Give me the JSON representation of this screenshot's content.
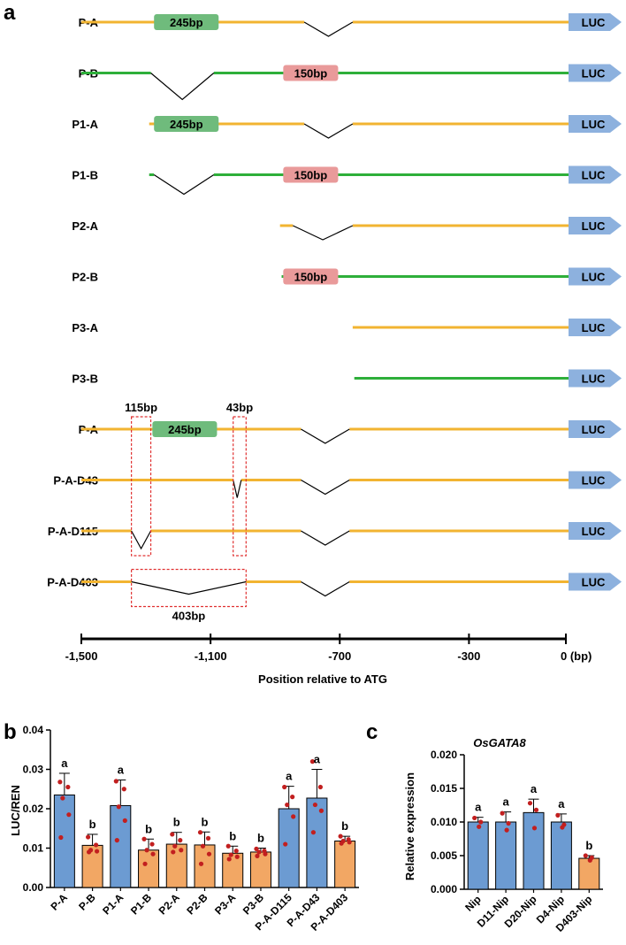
{
  "panel_labels": {
    "a": "a",
    "b": "b",
    "c": "c"
  },
  "colors": {
    "yellow": "#F2B431",
    "green": "#2EAF3A",
    "green_box": "#6FBB7C",
    "red_box": "#E99A9A",
    "luc": "#8DB1DE",
    "bar_blue": "#6C9BD2",
    "bar_orange": "#F2A764",
    "dot": "#C21F1F",
    "dashed": "#E03030"
  },
  "chart_data": [
    {
      "id": "a",
      "type": "diagram",
      "title": "Promoter constructs",
      "luc_label": "LUC",
      "box_245_label": "245bp",
      "box_150_label": "150bp",
      "constructs": [
        {
          "name": "P-A",
          "color": "yellow",
          "start": -1500,
          "v": [
            -810,
            -660
          ],
          "v_depth": 16,
          "box": {
            "label": "245bp",
            "from": -1275,
            "to": -1075
          }
        },
        {
          "name": "P-B",
          "color": "green",
          "start": -1500,
          "v": [
            -1285,
            -1090
          ],
          "v_depth": 30,
          "box": {
            "label": "150bp",
            "from": -875,
            "to": -705
          }
        },
        {
          "name": "P1-A",
          "color": "yellow",
          "start": -1290,
          "v": [
            -810,
            -660
          ],
          "v_depth": 16,
          "box": {
            "label": "245bp",
            "from": -1275,
            "to": -1075
          }
        },
        {
          "name": "P1-B",
          "color": "green",
          "start": -1290,
          "v": [
            -1275,
            -1090
          ],
          "v_depth": 22,
          "box": {
            "label": "150bp",
            "from": -875,
            "to": -705
          }
        },
        {
          "name": "P2-A",
          "color": "yellow",
          "start": -885,
          "v": [
            -845,
            -660
          ],
          "v_depth": 16
        },
        {
          "name": "P2-B",
          "color": "green",
          "start": -880,
          "box": {
            "label": "150bp",
            "from": -875,
            "to": -705
          }
        },
        {
          "name": "P3-A",
          "color": "yellow",
          "start": -660
        },
        {
          "name": "P3-B",
          "color": "green",
          "start": -655
        },
        {
          "name": "P-A",
          "color": "yellow",
          "start": -1500,
          "v": [
            -820,
            -670
          ],
          "v_depth": 16,
          "box": {
            "label": "245bp",
            "from": -1280,
            "to": -1080
          }
        },
        {
          "name": "P-A-D43",
          "color": "yellow",
          "start": -1500,
          "v": [
            -820,
            -670
          ],
          "v_depth": 16,
          "notch": [
            -1030,
            -1005
          ]
        },
        {
          "name": "P-A-D115",
          "color": "yellow",
          "start": -1500,
          "v": [
            -820,
            -670
          ],
          "v_depth": 16,
          "notch": [
            -1345,
            -1285
          ]
        },
        {
          "name": "P-A-D403",
          "color": "yellow",
          "start": -1500,
          "v": [
            -820,
            -670
          ],
          "v_depth": 16,
          "notch": [
            -1345,
            -990
          ],
          "notch_depth": 14
        }
      ],
      "dashed_boxes": [
        {
          "label": "115bp",
          "label_pos": "top",
          "from": -1345,
          "to": -1285,
          "row_from": 8,
          "row_to": 10
        },
        {
          "label": "43bp",
          "label_pos": "top",
          "from": -1030,
          "to": -990,
          "row_from": 8,
          "row_to": 10
        },
        {
          "label": "403bp",
          "label_pos": "bottom",
          "from": -1345,
          "to": -990,
          "row_from": 11,
          "row_to": 11
        }
      ],
      "axis": {
        "range": [
          -1500,
          0
        ],
        "ticks": [
          -1500,
          -1100,
          -700,
          -300,
          0
        ],
        "tick_labels": [
          "-1,500",
          "-1,100",
          "-700",
          "-300",
          "0 (bp)"
        ],
        "label": "Position relative to ATG"
      }
    },
    {
      "id": "b",
      "type": "bar",
      "ylabel": "LUC/REN",
      "ylim": [
        0,
        0.04
      ],
      "yticks": [
        0.0,
        0.01,
        0.02,
        0.03,
        0.04
      ],
      "ytick_labels": [
        "0.00",
        "0.01",
        "0.02",
        "0.03",
        "0.04"
      ],
      "categories": [
        "P-A",
        "P-B",
        "P1-A",
        "P1-B",
        "P2-A",
        "P2-B",
        "P3-A",
        "P3-B",
        "P-A-D115",
        "P-A-D43",
        "P-A-D403"
      ],
      "values": [
        0.0235,
        0.0107,
        0.0208,
        0.0095,
        0.011,
        0.0108,
        0.0087,
        0.009,
        0.02,
        0.0227,
        0.0118
      ],
      "errors": [
        0.0055,
        0.0028,
        0.0065,
        0.0028,
        0.003,
        0.0033,
        0.0018,
        0.001,
        0.0057,
        0.0073,
        0.0012
      ],
      "colors": [
        "blue",
        "orange",
        "blue",
        "orange",
        "orange",
        "orange",
        "orange",
        "orange",
        "blue",
        "blue",
        "orange"
      ],
      "letters": [
        "a",
        "b",
        "a",
        "b",
        "b",
        "b",
        "b",
        "b",
        "a",
        "a",
        "b"
      ],
      "points": [
        [
          0.0268,
          0.0255,
          0.0227,
          0.0185,
          0.0127
        ],
        [
          0.0128,
          0.0108,
          0.0095,
          0.0092,
          0.009
        ],
        [
          0.027,
          0.025,
          0.0205,
          0.017,
          0.012
        ],
        [
          0.0123,
          0.011,
          0.0095,
          0.0085,
          0.006
        ],
        [
          0.0135,
          0.012,
          0.0105,
          0.0095,
          0.009
        ],
        [
          0.014,
          0.0125,
          0.0105,
          0.0085,
          0.006
        ],
        [
          0.0105,
          0.0093,
          0.0083,
          0.0078,
          0.0072
        ],
        [
          0.0098,
          0.0093,
          0.009,
          0.0085,
          0.008
        ],
        [
          0.0255,
          0.023,
          0.021,
          0.018,
          0.011
        ],
        [
          0.032,
          0.0255,
          0.021,
          0.0195,
          0.014
        ],
        [
          0.013,
          0.0122,
          0.0118,
          0.0115,
          0.0112
        ]
      ]
    },
    {
      "id": "c",
      "type": "bar",
      "title": "OsGATA8",
      "ylabel": "Relative expression",
      "ylim": [
        0,
        0.02
      ],
      "yticks": [
        0.0,
        0.005,
        0.01,
        0.015,
        0.02
      ],
      "ytick_labels": [
        "0.000",
        "0.005",
        "0.010",
        "0.015",
        "0.020"
      ],
      "categories": [
        "Nip",
        "D11-Nip",
        "D20-Nip",
        "D4-Nip",
        "D403-Nip"
      ],
      "values": [
        0.01,
        0.01,
        0.0114,
        0.01,
        0.0046
      ],
      "errors": [
        0.0007,
        0.0015,
        0.002,
        0.0012,
        0.0004
      ],
      "colors": [
        "blue",
        "blue",
        "blue",
        "blue",
        "orange"
      ],
      "letters": [
        "a",
        "a",
        "a",
        "a",
        "b"
      ],
      "points": [
        [
          0.0106,
          0.01,
          0.0093
        ],
        [
          0.0113,
          0.0098,
          0.0088
        ],
        [
          0.0128,
          0.0118,
          0.0091
        ],
        [
          0.011,
          0.0096,
          0.0092
        ],
        [
          0.005,
          0.0047,
          0.0043
        ]
      ]
    }
  ]
}
